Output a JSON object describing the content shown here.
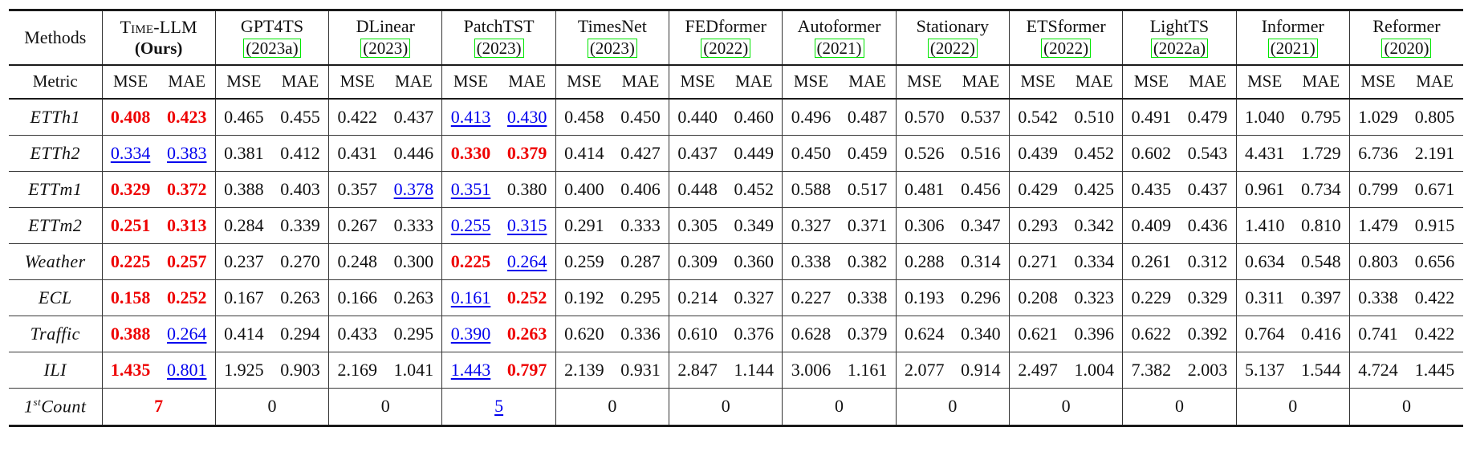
{
  "colors": {
    "best": "#ee0000",
    "second": "#0000ee",
    "cite": "#00e600"
  },
  "legend_note": {
    "best_style": "red bold = best",
    "second_style": "blue underline = second best"
  },
  "table": {
    "corner_header": "Methods",
    "metric_header": "Metric",
    "mse_label": "MSE",
    "mae_label": "MAE",
    "methods": [
      {
        "name": "Time-LLM",
        "sub": "(Ours)",
        "ours": true
      },
      {
        "name": "GPT4TS",
        "sub": "(2023a)",
        "cite": true
      },
      {
        "name": "DLinear",
        "sub": "(2023)",
        "cite": true
      },
      {
        "name": "PatchTST",
        "sub": "(2023)",
        "cite": true
      },
      {
        "name": "TimesNet",
        "sub": "(2023)",
        "cite": true
      },
      {
        "name": "FEDformer",
        "sub": "(2022)",
        "cite": true
      },
      {
        "name": "Autoformer",
        "sub": "(2021)",
        "cite": true
      },
      {
        "name": "Stationary",
        "sub": "(2022)",
        "cite": true
      },
      {
        "name": "ETSformer",
        "sub": "(2022)",
        "cite": true
      },
      {
        "name": "LightTS",
        "sub": "(2022a)",
        "cite": true
      },
      {
        "name": "Informer",
        "sub": "(2021)",
        "cite": true
      },
      {
        "name": "Reformer",
        "sub": "(2020)",
        "cite": true
      }
    ],
    "rows": [
      {
        "dataset": "ETTh1",
        "cells": [
          {
            "v": "0.408",
            "s": "best"
          },
          {
            "v": "0.423",
            "s": "best"
          },
          {
            "v": "0.465"
          },
          {
            "v": "0.455"
          },
          {
            "v": "0.422"
          },
          {
            "v": "0.437"
          },
          {
            "v": "0.413",
            "s": "second"
          },
          {
            "v": "0.430",
            "s": "second"
          },
          {
            "v": "0.458"
          },
          {
            "v": "0.450"
          },
          {
            "v": "0.440"
          },
          {
            "v": "0.460"
          },
          {
            "v": "0.496"
          },
          {
            "v": "0.487"
          },
          {
            "v": "0.570"
          },
          {
            "v": "0.537"
          },
          {
            "v": "0.542"
          },
          {
            "v": "0.510"
          },
          {
            "v": "0.491"
          },
          {
            "v": "0.479"
          },
          {
            "v": "1.040"
          },
          {
            "v": "0.795"
          },
          {
            "v": "1.029"
          },
          {
            "v": "0.805"
          }
        ]
      },
      {
        "dataset": "ETTh2",
        "cells": [
          {
            "v": "0.334",
            "s": "second"
          },
          {
            "v": "0.383",
            "s": "second"
          },
          {
            "v": "0.381"
          },
          {
            "v": "0.412"
          },
          {
            "v": "0.431"
          },
          {
            "v": "0.446"
          },
          {
            "v": "0.330",
            "s": "best"
          },
          {
            "v": "0.379",
            "s": "best"
          },
          {
            "v": "0.414"
          },
          {
            "v": "0.427"
          },
          {
            "v": "0.437"
          },
          {
            "v": "0.449"
          },
          {
            "v": "0.450"
          },
          {
            "v": "0.459"
          },
          {
            "v": "0.526"
          },
          {
            "v": "0.516"
          },
          {
            "v": "0.439"
          },
          {
            "v": "0.452"
          },
          {
            "v": "0.602"
          },
          {
            "v": "0.543"
          },
          {
            "v": "4.431"
          },
          {
            "v": "1.729"
          },
          {
            "v": "6.736"
          },
          {
            "v": "2.191"
          }
        ]
      },
      {
        "dataset": "ETTm1",
        "cells": [
          {
            "v": "0.329",
            "s": "best"
          },
          {
            "v": "0.372",
            "s": "best"
          },
          {
            "v": "0.388"
          },
          {
            "v": "0.403"
          },
          {
            "v": "0.357"
          },
          {
            "v": "0.378",
            "s": "second"
          },
          {
            "v": "0.351",
            "s": "second"
          },
          {
            "v": "0.380"
          },
          {
            "v": "0.400"
          },
          {
            "v": "0.406"
          },
          {
            "v": "0.448"
          },
          {
            "v": "0.452"
          },
          {
            "v": "0.588"
          },
          {
            "v": "0.517"
          },
          {
            "v": "0.481"
          },
          {
            "v": "0.456"
          },
          {
            "v": "0.429"
          },
          {
            "v": "0.425"
          },
          {
            "v": "0.435"
          },
          {
            "v": "0.437"
          },
          {
            "v": "0.961"
          },
          {
            "v": "0.734"
          },
          {
            "v": "0.799"
          },
          {
            "v": "0.671"
          }
        ]
      },
      {
        "dataset": "ETTm2",
        "cells": [
          {
            "v": "0.251",
            "s": "best"
          },
          {
            "v": "0.313",
            "s": "best"
          },
          {
            "v": "0.284"
          },
          {
            "v": "0.339"
          },
          {
            "v": "0.267"
          },
          {
            "v": "0.333"
          },
          {
            "v": "0.255",
            "s": "second"
          },
          {
            "v": "0.315",
            "s": "second"
          },
          {
            "v": "0.291"
          },
          {
            "v": "0.333"
          },
          {
            "v": "0.305"
          },
          {
            "v": "0.349"
          },
          {
            "v": "0.327"
          },
          {
            "v": "0.371"
          },
          {
            "v": "0.306"
          },
          {
            "v": "0.347"
          },
          {
            "v": "0.293"
          },
          {
            "v": "0.342"
          },
          {
            "v": "0.409"
          },
          {
            "v": "0.436"
          },
          {
            "v": "1.410"
          },
          {
            "v": "0.810"
          },
          {
            "v": "1.479"
          },
          {
            "v": "0.915"
          }
        ]
      },
      {
        "dataset": "Weather",
        "cells": [
          {
            "v": "0.225",
            "s": "best"
          },
          {
            "v": "0.257",
            "s": "best"
          },
          {
            "v": "0.237"
          },
          {
            "v": "0.270"
          },
          {
            "v": "0.248"
          },
          {
            "v": "0.300"
          },
          {
            "v": "0.225",
            "s": "best"
          },
          {
            "v": "0.264",
            "s": "second"
          },
          {
            "v": "0.259"
          },
          {
            "v": "0.287"
          },
          {
            "v": "0.309"
          },
          {
            "v": "0.360"
          },
          {
            "v": "0.338"
          },
          {
            "v": "0.382"
          },
          {
            "v": "0.288"
          },
          {
            "v": "0.314"
          },
          {
            "v": "0.271"
          },
          {
            "v": "0.334"
          },
          {
            "v": "0.261"
          },
          {
            "v": "0.312"
          },
          {
            "v": "0.634"
          },
          {
            "v": "0.548"
          },
          {
            "v": "0.803"
          },
          {
            "v": "0.656"
          }
        ]
      },
      {
        "dataset": "ECL",
        "cells": [
          {
            "v": "0.158",
            "s": "best"
          },
          {
            "v": "0.252",
            "s": "best"
          },
          {
            "v": "0.167"
          },
          {
            "v": "0.263"
          },
          {
            "v": "0.166"
          },
          {
            "v": "0.263"
          },
          {
            "v": "0.161",
            "s": "second"
          },
          {
            "v": "0.252",
            "s": "best"
          },
          {
            "v": "0.192"
          },
          {
            "v": "0.295"
          },
          {
            "v": "0.214"
          },
          {
            "v": "0.327"
          },
          {
            "v": "0.227"
          },
          {
            "v": "0.338"
          },
          {
            "v": "0.193"
          },
          {
            "v": "0.296"
          },
          {
            "v": "0.208"
          },
          {
            "v": "0.323"
          },
          {
            "v": "0.229"
          },
          {
            "v": "0.329"
          },
          {
            "v": "0.311"
          },
          {
            "v": "0.397"
          },
          {
            "v": "0.338"
          },
          {
            "v": "0.422"
          }
        ]
      },
      {
        "dataset": "Traffic",
        "cells": [
          {
            "v": "0.388",
            "s": "best"
          },
          {
            "v": "0.264",
            "s": "second"
          },
          {
            "v": "0.414"
          },
          {
            "v": "0.294"
          },
          {
            "v": "0.433"
          },
          {
            "v": "0.295"
          },
          {
            "v": "0.390",
            "s": "second"
          },
          {
            "v": "0.263",
            "s": "best"
          },
          {
            "v": "0.620"
          },
          {
            "v": "0.336"
          },
          {
            "v": "0.610"
          },
          {
            "v": "0.376"
          },
          {
            "v": "0.628"
          },
          {
            "v": "0.379"
          },
          {
            "v": "0.624"
          },
          {
            "v": "0.340"
          },
          {
            "v": "0.621"
          },
          {
            "v": "0.396"
          },
          {
            "v": "0.622"
          },
          {
            "v": "0.392"
          },
          {
            "v": "0.764"
          },
          {
            "v": "0.416"
          },
          {
            "v": "0.741"
          },
          {
            "v": "0.422"
          }
        ]
      },
      {
        "dataset": "ILI",
        "cells": [
          {
            "v": "1.435",
            "s": "best"
          },
          {
            "v": "0.801",
            "s": "second"
          },
          {
            "v": "1.925"
          },
          {
            "v": "0.903"
          },
          {
            "v": "2.169"
          },
          {
            "v": "1.041"
          },
          {
            "v": "1.443",
            "s": "second"
          },
          {
            "v": "0.797",
            "s": "best"
          },
          {
            "v": "2.139"
          },
          {
            "v": "0.931"
          },
          {
            "v": "2.847"
          },
          {
            "v": "1.144"
          },
          {
            "v": "3.006"
          },
          {
            "v": "1.161"
          },
          {
            "v": "2.077"
          },
          {
            "v": "0.914"
          },
          {
            "v": "2.497"
          },
          {
            "v": "1.004"
          },
          {
            "v": "7.382"
          },
          {
            "v": "2.003"
          },
          {
            "v": "5.137"
          },
          {
            "v": "1.544"
          },
          {
            "v": "4.724"
          },
          {
            "v": "1.445"
          }
        ]
      }
    ],
    "count_row": {
      "label_base": "1",
      "label_sup": "st",
      "label_rest": "Count",
      "values": [
        {
          "v": "7",
          "s": "best"
        },
        {
          "v": "0"
        },
        {
          "v": "0"
        },
        {
          "v": "5",
          "s": "second"
        },
        {
          "v": "0"
        },
        {
          "v": "0"
        },
        {
          "v": "0"
        },
        {
          "v": "0"
        },
        {
          "v": "0"
        },
        {
          "v": "0"
        },
        {
          "v": "0"
        },
        {
          "v": "0"
        }
      ]
    }
  }
}
